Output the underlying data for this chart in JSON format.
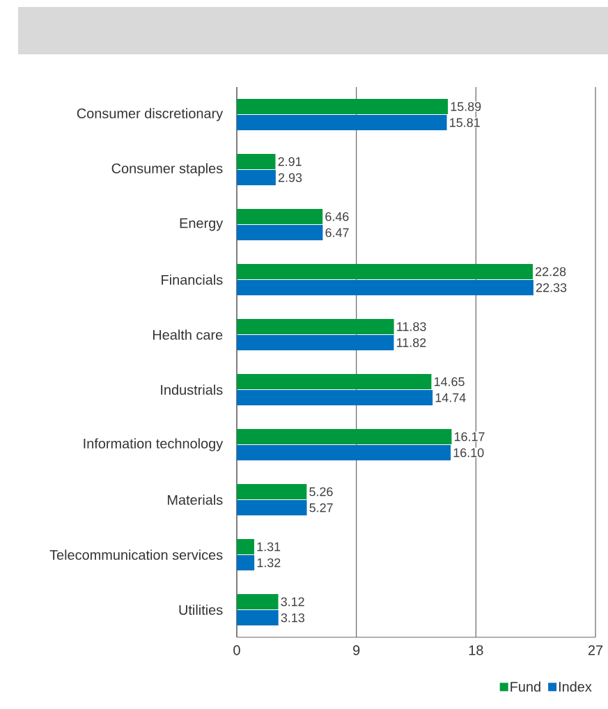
{
  "chart_data": {
    "type": "bar",
    "orientation": "horizontal",
    "categories": [
      "Consumer discretionary",
      "Consumer staples",
      "Energy",
      "Financials",
      "Health care",
      "Industrials",
      "Information technology",
      "Materials",
      "Telecommunication services",
      "Utilities"
    ],
    "series": [
      {
        "name": "Fund",
        "color": "#009a3e",
        "values": [
          15.89,
          2.91,
          6.46,
          22.28,
          11.83,
          14.65,
          16.17,
          5.26,
          1.31,
          3.12
        ],
        "value_labels": [
          "15.89",
          "2.91",
          "6.46",
          "22.28",
          "11.83",
          "14.65",
          "16.17",
          "5.26",
          "1.31",
          "3.12"
        ]
      },
      {
        "name": "Index",
        "color": "#0070c0",
        "values": [
          15.81,
          2.93,
          6.47,
          22.33,
          11.82,
          14.74,
          16.1,
          5.27,
          1.32,
          3.13
        ],
        "value_labels": [
          "15.81",
          "2.93",
          "6.47",
          "22.33",
          "11.82",
          "14.74",
          "16.10",
          "5.27",
          "1.32",
          "3.13"
        ]
      }
    ],
    "xlim": [
      0,
      27
    ],
    "xticks": [
      0,
      9,
      18,
      27
    ],
    "grid": "x",
    "legend": "bottom right"
  }
}
